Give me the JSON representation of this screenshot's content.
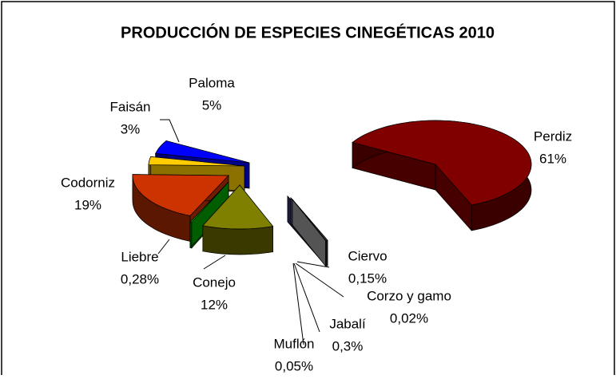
{
  "chart_data": {
    "type": "pie",
    "title": "PRODUCCIÓN DE ESPECIES CINEGÉTICAS 2010",
    "categories": [
      "Perdiz",
      "Ciervo",
      "Corzo y gamo",
      "Jabalí",
      "Muflón",
      "Conejo",
      "Liebre",
      "Codorniz",
      "Faisán",
      "Paloma"
    ],
    "values": [
      61,
      0.15,
      0.02,
      0.3,
      0.05,
      12,
      0.28,
      19,
      3,
      5
    ],
    "value_labels": [
      "61%",
      "0,15%",
      "0,02%",
      "0,3%",
      "0,05%",
      "12%",
      "0,28%",
      "19%",
      "3%",
      "5%"
    ],
    "colors": [
      "#800000",
      "#333366",
      "#6666aa",
      "#444444",
      "#999999",
      "#808000",
      "#00aa00",
      "#cc3300",
      "#ffcc00",
      "#0000ff"
    ]
  }
}
